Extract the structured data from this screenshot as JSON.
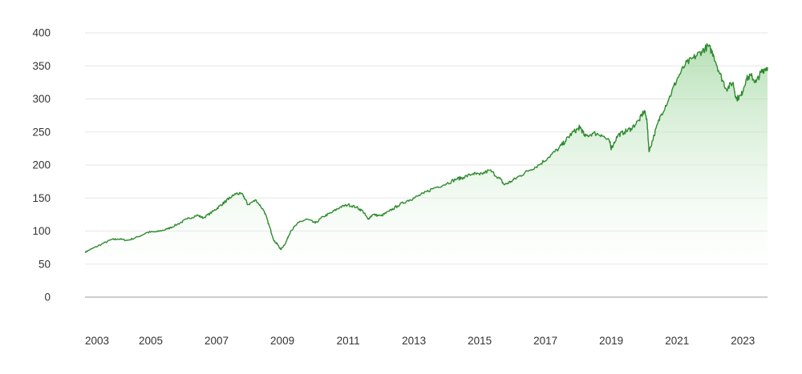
{
  "chart_data": {
    "type": "area",
    "title": "",
    "xlabel": "",
    "ylabel": "",
    "xlim": [
      2003.0,
      2023.75
    ],
    "ylim": [
      0,
      400
    ],
    "x_ticks": [
      "2003",
      "2005",
      "2007",
      "2009",
      "2011",
      "2013",
      "2015",
      "2017",
      "2019",
      "2021",
      "2023"
    ],
    "y_ticks": [
      "0",
      "50",
      "100",
      "150",
      "200",
      "250",
      "300",
      "350",
      "400"
    ],
    "grid": "horizontal",
    "legend": "none",
    "colors": {
      "line": "#2e8b2e",
      "fill": "#b8e3b8",
      "grid": "#e6e6e6",
      "axis": "#bbbbbb",
      "text": "#333333"
    },
    "series": [
      {
        "x": [
          2003.0,
          2003.2,
          2003.5,
          2003.8,
          2004.0,
          2004.3,
          2004.6,
          2004.9,
          2005.2,
          2005.5,
          2005.8,
          2006.1,
          2006.4,
          2006.6,
          2006.9,
          2007.1,
          2007.3,
          2007.4,
          2007.6,
          2007.8,
          2007.95,
          2008.2,
          2008.45,
          2008.6,
          2008.75,
          2008.85,
          2008.95,
          2009.1,
          2009.25,
          2009.5,
          2009.75,
          2010.0,
          2010.25,
          2010.5,
          2010.75,
          2011.0,
          2011.25,
          2011.45,
          2011.6,
          2011.75,
          2012.0,
          2012.25,
          2012.5,
          2012.8,
          2013.0,
          2013.3,
          2013.6,
          2014.0,
          2014.3,
          2014.5,
          2014.8,
          2015.0,
          2015.3,
          2015.6,
          2015.75,
          2015.95,
          2016.2,
          2016.5,
          2016.8,
          2017.1,
          2017.4,
          2017.6,
          2017.8,
          2018.0,
          2018.05,
          2018.2,
          2018.45,
          2018.7,
          2018.95,
          2019.0,
          2019.2,
          2019.4,
          2019.6,
          2019.85,
          2020.0,
          2020.08,
          2020.15,
          2020.3,
          2020.5,
          2020.75,
          2021.0,
          2021.25,
          2021.5,
          2021.75,
          2021.95,
          2022.1,
          2022.3,
          2022.5,
          2022.7,
          2022.8,
          2022.95,
          2023.1,
          2023.25,
          2023.4,
          2023.55,
          2023.65,
          2023.75
        ],
        "y": [
          68,
          73,
          80,
          87,
          88,
          86,
          91,
          98,
          99,
          103,
          110,
          118,
          124,
          120,
          130,
          138,
          146,
          150,
          157,
          155,
          140,
          147,
          130,
          108,
          85,
          80,
          72,
          82,
          100,
          113,
          118,
          112,
          122,
          128,
          136,
          140,
          136,
          130,
          118,
          125,
          123,
          130,
          138,
          146,
          150,
          157,
          165,
          172,
          179,
          181,
          187,
          185,
          192,
          180,
          170,
          175,
          183,
          192,
          200,
          212,
          225,
          236,
          248,
          255,
          258,
          243,
          248,
          246,
          235,
          225,
          245,
          250,
          255,
          268,
          282,
          270,
          220,
          245,
          275,
          300,
          330,
          352,
          362,
          372,
          380,
          368,
          338,
          315,
          325,
          300,
          305,
          330,
          335,
          325,
          340,
          345,
          348
        ]
      }
    ]
  }
}
